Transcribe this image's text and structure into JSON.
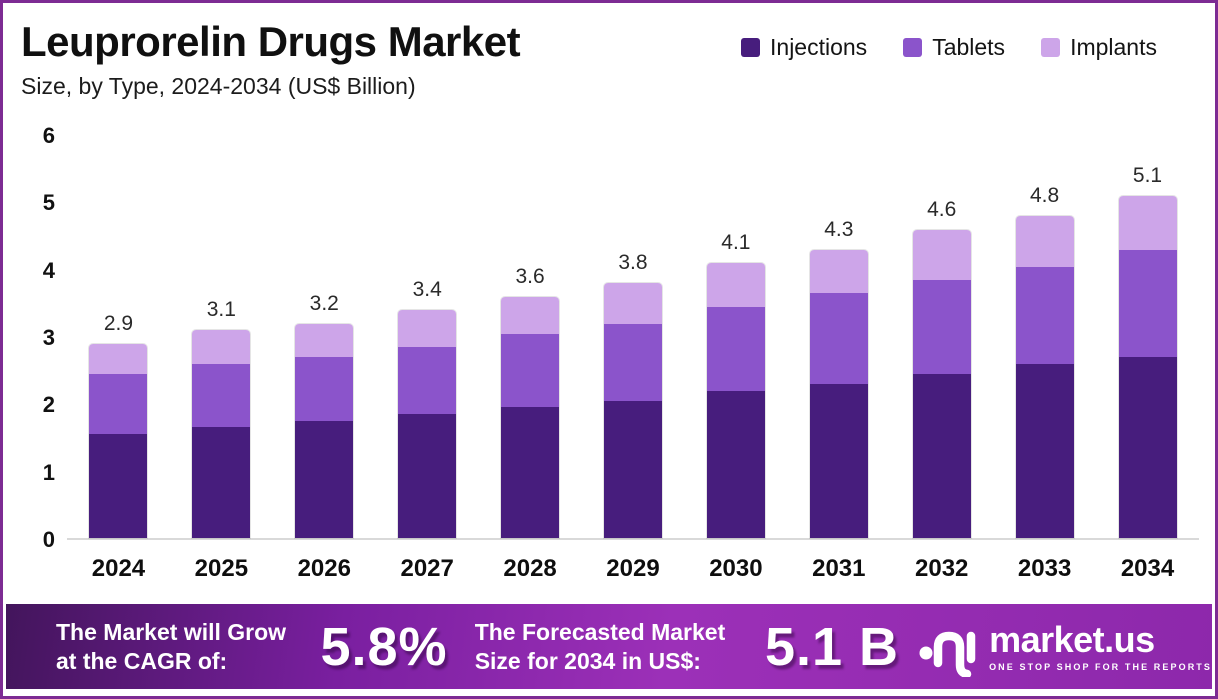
{
  "frame": {
    "border_color": "#7d2b93",
    "background": "#ffffff"
  },
  "header": {
    "title": "Leuprorelin Drugs Market",
    "subtitle": "Size, by Type, 2024-2034 (US$ Billion)"
  },
  "legend": {
    "items": [
      {
        "label": "Injections",
        "color": "#471d7d"
      },
      {
        "label": "Tablets",
        "color": "#8b54cb"
      },
      {
        "label": "Implants",
        "color": "#cda5e9"
      }
    ]
  },
  "chart_data": {
    "type": "bar",
    "stacked": true,
    "title": "Leuprorelin Drugs Market Size, by Type, 2024-2034 (US$ Billion)",
    "categories": [
      "2024",
      "2025",
      "2026",
      "2027",
      "2028",
      "2029",
      "2030",
      "2031",
      "2032",
      "2033",
      "2034"
    ],
    "series": [
      {
        "name": "Injections",
        "color": "#471d7d",
        "values": [
          1.55,
          1.65,
          1.75,
          1.85,
          1.95,
          2.05,
          2.2,
          2.3,
          2.45,
          2.6,
          2.7
        ]
      },
      {
        "name": "Tablets",
        "color": "#8b54cb",
        "values": [
          0.9,
          0.95,
          0.95,
          1.0,
          1.1,
          1.15,
          1.25,
          1.35,
          1.4,
          1.45,
          1.6
        ]
      },
      {
        "name": "Implants",
        "color": "#cda5e9",
        "values": [
          0.45,
          0.5,
          0.5,
          0.55,
          0.55,
          0.6,
          0.65,
          0.65,
          0.75,
          0.75,
          0.8
        ]
      }
    ],
    "totals": [
      2.9,
      3.1,
      3.2,
      3.4,
      3.6,
      3.8,
      4.1,
      4.3,
      4.6,
      4.8,
      5.1
    ],
    "total_labels": [
      "2.9",
      "3.1",
      "3.2",
      "3.4",
      "3.6",
      "3.8",
      "4.1",
      "4.3",
      "4.6",
      "4.8",
      "5.1"
    ],
    "xlabel": "",
    "ylabel": "",
    "ylim": [
      0,
      6
    ],
    "yticks": [
      0,
      1,
      2,
      3,
      4,
      5,
      6
    ],
    "grid": false,
    "legend_position": "top-right"
  },
  "footer": {
    "cagr_label": "The Market will Grow at the CAGR of:",
    "cagr_value": "5.8%",
    "forecast_label": "The Forecasted Market Size for 2034 in US$:",
    "forecast_value": "5.1 B",
    "brand": {
      "name": "market.us",
      "tagline": "ONE STOP SHOP FOR THE REPORTS"
    },
    "gradient": [
      "#43155c",
      "#7a1fa0",
      "#9c30b8",
      "#8d28ab"
    ]
  }
}
